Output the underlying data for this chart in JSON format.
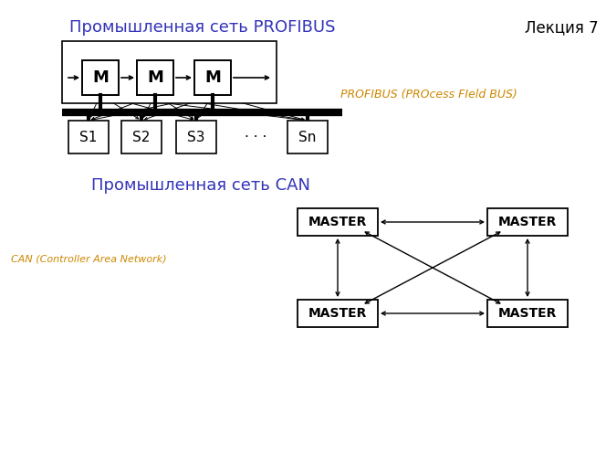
{
  "title_profibus": "Промышленная сеть PROFIBUS",
  "title_can": "Промышленная сеть CAN",
  "lecture_label": "Лекция 7",
  "profibus_note": "PROFIBUS (PROcess FIeld BUS)",
  "can_note": "CAN (Controller Area Network)",
  "title_color": "#3333bb",
  "note_color": "#cc8800",
  "bg_color": "#ffffff",
  "box_color": "#ffffff",
  "slave_labels": [
    "S1",
    "S2",
    "S3",
    "· · ·",
    "Sn"
  ]
}
